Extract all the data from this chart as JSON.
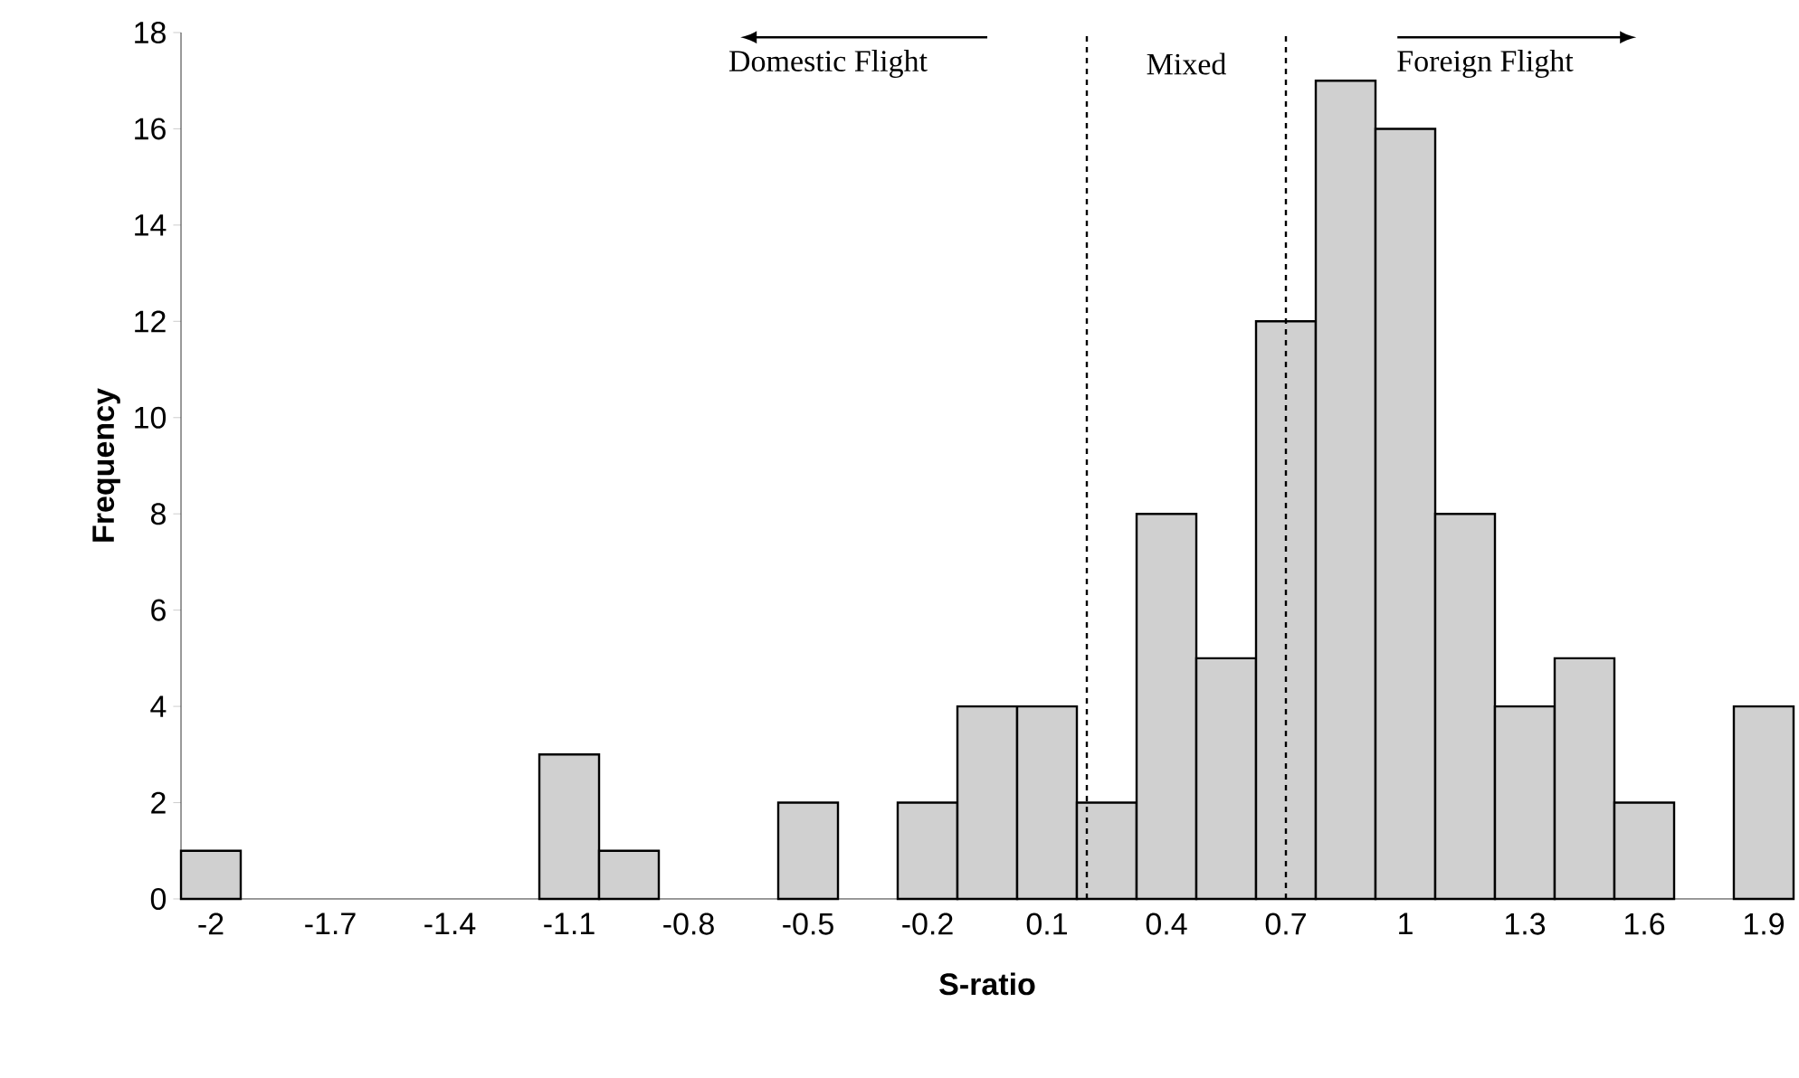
{
  "chart_data": {
    "type": "histogram",
    "xlabel": "S-ratio",
    "ylabel": "Frequency",
    "bins": [
      -2.075,
      -1.925,
      -1.775,
      -1.625,
      -1.475,
      -1.325,
      -1.175,
      -1.025,
      -0.875,
      -0.725,
      -0.575,
      -0.425,
      -0.275,
      -0.125,
      0.025,
      0.175,
      0.325,
      0.475,
      0.625,
      0.775,
      0.925,
      1.075,
      1.225,
      1.375,
      1.525,
      1.675,
      1.825,
      1.975
    ],
    "values": [
      1,
      0,
      0,
      0,
      0,
      0,
      3,
      1,
      0,
      0,
      2,
      0,
      2,
      4,
      4,
      2,
      8,
      5,
      12,
      17,
      16,
      8,
      4,
      5,
      2,
      0,
      4
    ],
    "color": "#d0d0d0",
    "xlim": [
      -2.075,
      1.975
    ],
    "xticks": [
      -2,
      -1.7,
      -1.4,
      -1.1,
      -0.8,
      -0.5,
      -0.2,
      0.1,
      0.4,
      0.7,
      1,
      1.3,
      1.6,
      1.9
    ],
    "ylim": [
      0,
      18
    ],
    "yticks": [
      0,
      2,
      4,
      6,
      8,
      10,
      12,
      14,
      16,
      18
    ],
    "ref_lines": [
      {
        "axis": "x",
        "value": 0.2,
        "line_style": "dashed"
      },
      {
        "axis": "x",
        "value": 0.7,
        "line_style": "dashed"
      }
    ],
    "annotations": [
      "Domestic Flight",
      "Mixed",
      "Foreign Flight"
    ],
    "grid": false
  }
}
